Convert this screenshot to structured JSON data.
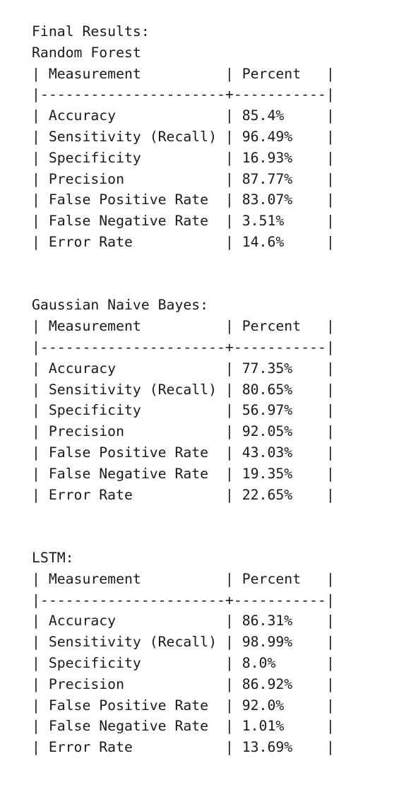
{
  "title": "Final Results:",
  "header_row": "| Measurement          | Percent   |",
  "separator_row": "|----------------------+-----------|",
  "models": [
    {
      "name": "Random Forest",
      "rows": [
        "| Accuracy             | 85.4%     |",
        "| Sensitivity (Recall) | 96.49%    |",
        "| Specificity          | 16.93%    |",
        "| Precision            | 87.77%    |",
        "| False Positive Rate  | 83.07%    |",
        "| False Negative Rate  | 3.51%     |",
        "| Error Rate           | 14.6%     |"
      ]
    },
    {
      "name": "Gaussian Naive Bayes:",
      "rows": [
        "| Accuracy             | 77.35%    |",
        "| Sensitivity (Recall) | 80.65%    |",
        "| Specificity          | 56.97%    |",
        "| Precision            | 92.05%    |",
        "| False Positive Rate  | 43.03%    |",
        "| False Negative Rate  | 19.35%    |",
        "| Error Rate           | 22.65%    |"
      ]
    },
    {
      "name": "LSTM:",
      "rows": [
        "| Accuracy             | 86.31%    |",
        "| Sensitivity (Recall) | 98.99%    |",
        "| Specificity          | 8.0%      |",
        "| Precision            | 86.92%    |",
        "| False Positive Rate  | 92.0%     |",
        "| False Negative Rate  | 1.01%     |",
        "| Error Rate           | 13.69%    |"
      ]
    }
  ]
}
